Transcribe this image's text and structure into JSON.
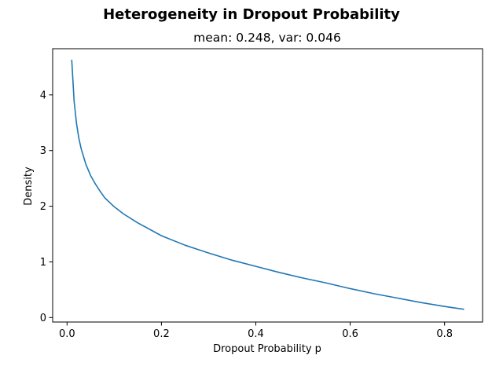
{
  "figure": {
    "suptitle": "Heterogeneity in Dropout Probability",
    "subtitle": "mean: 0.248, var: 0.046"
  },
  "chart_data": {
    "type": "line",
    "title": "mean: 0.248, var: 0.046",
    "xlabel": "Dropout Probability p",
    "ylabel": "Density",
    "xlim": [
      -0.0305,
      0.8805
    ],
    "ylim": [
      -0.08,
      4.83
    ],
    "xticks": [
      0.0,
      0.2,
      0.4,
      0.6,
      0.8
    ],
    "xtick_labels": [
      "0.0",
      "0.2",
      "0.4",
      "0.6",
      "0.8"
    ],
    "yticks": [
      0,
      1,
      2,
      3,
      4
    ],
    "ytick_labels": [
      "0",
      "1",
      "2",
      "3",
      "4"
    ],
    "grid": false,
    "line_color": "#1f77b4",
    "series": [
      {
        "x": [
          0.01,
          0.015,
          0.02,
          0.025,
          0.03,
          0.04,
          0.05,
          0.06,
          0.07,
          0.08,
          0.1,
          0.12,
          0.15,
          0.2,
          0.25,
          0.3,
          0.35,
          0.4,
          0.45,
          0.5,
          0.55,
          0.6,
          0.65,
          0.7,
          0.75,
          0.8,
          0.84
        ],
        "y": [
          4.62,
          3.88,
          3.49,
          3.22,
          3.03,
          2.75,
          2.55,
          2.4,
          2.27,
          2.15,
          1.99,
          1.86,
          1.7,
          1.47,
          1.3,
          1.16,
          1.03,
          0.92,
          0.81,
          0.71,
          0.62,
          0.52,
          0.43,
          0.35,
          0.27,
          0.2,
          0.15
        ]
      }
    ]
  }
}
